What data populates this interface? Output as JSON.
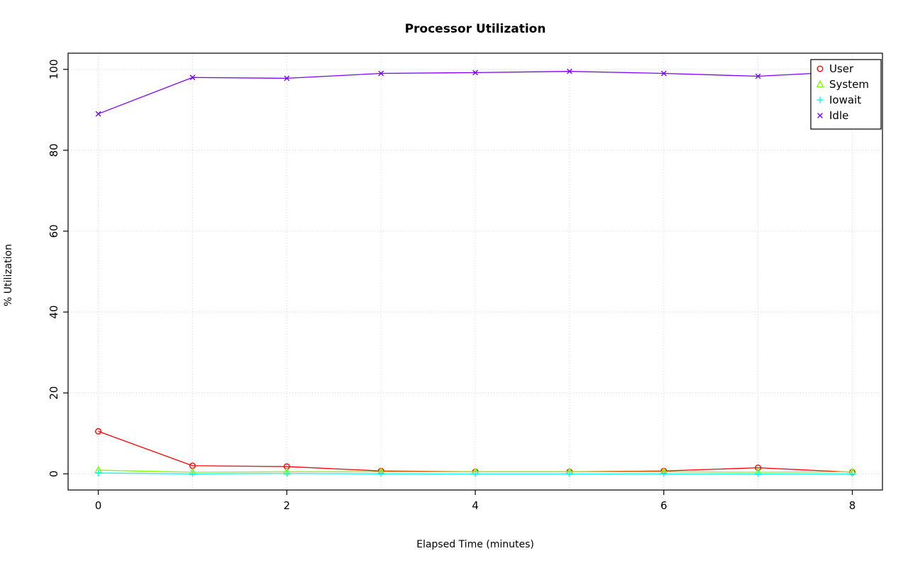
{
  "chart_data": {
    "type": "line",
    "title": "Processor Utilization",
    "xlabel": "Elapsed Time (minutes)",
    "ylabel": "% Utilization",
    "x": [
      0,
      1,
      2,
      3,
      4,
      5,
      6,
      7,
      8
    ],
    "xlim": [
      0,
      8
    ],
    "ylim": [
      0,
      100
    ],
    "x_ticks": [
      0,
      2,
      4,
      6,
      8
    ],
    "y_ticks": [
      0,
      20,
      40,
      60,
      80,
      100
    ],
    "grid_x": [
      0,
      1,
      2,
      3,
      4,
      5,
      6,
      7,
      8
    ],
    "grid_y": [
      0,
      20,
      40,
      60,
      80,
      100
    ],
    "grid": true,
    "grid_color": "#d3d3d3",
    "axis_color": "#000000",
    "legend_position": "top-right",
    "series": [
      {
        "name": "User",
        "color": "#ff0000",
        "marker": "circle",
        "values": [
          10.5,
          2.0,
          1.8,
          0.7,
          0.5,
          0.5,
          0.7,
          1.5,
          0.4
        ]
      },
      {
        "name": "System",
        "color": "#80ff00",
        "marker": "triangle",
        "values": [
          0.9,
          0.4,
          0.5,
          0.5,
          0.5,
          0.5,
          0.5,
          0.4,
          0.5
        ]
      },
      {
        "name": "Iowait",
        "color": "#00ffff",
        "marker": "plus",
        "values": [
          0.2,
          0.0,
          0.1,
          0.0,
          0.0,
          0.0,
          0.0,
          0.0,
          0.0
        ]
      },
      {
        "name": "Idle",
        "color": "#8000ff",
        "marker": "x",
        "values": [
          89.0,
          98.0,
          97.8,
          99.0,
          99.2,
          99.5,
          99.0,
          98.3,
          99.5
        ]
      }
    ]
  }
}
